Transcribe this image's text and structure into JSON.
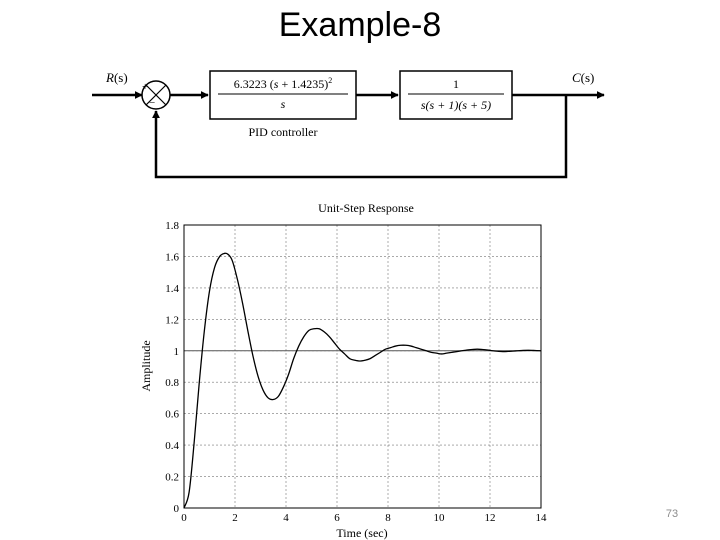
{
  "slide": {
    "title": "Example-8",
    "page_number": "73"
  },
  "block_diagram": {
    "input_label_var": "R",
    "input_label_arg": "(s)",
    "output_label_var": "C",
    "output_label_arg": "(s)",
    "sum_plus": "+",
    "sum_minus": "−",
    "pid_block": {
      "numerator_gain": "6.3223",
      "numerator_open": "(",
      "numerator_s": "s",
      "numerator_rest": "+ 1.4235)",
      "numerator_exp": "2",
      "denominator": "s",
      "caption": "PID controller"
    },
    "plant_block": {
      "numerator": "1",
      "denominator": "s(s + 1)(s + 5)"
    }
  },
  "chart_data": {
    "type": "line",
    "title": "Unit-Step Response",
    "xlabel": "Time (sec)",
    "ylabel": "Amplitude",
    "xlim": [
      0,
      14
    ],
    "ylim": [
      0,
      1.8
    ],
    "xticks": [
      "0",
      "2",
      "4",
      "6",
      "8",
      "10",
      "12",
      "14"
    ],
    "yticks": [
      "0",
      "0.2",
      "0.4",
      "0.6",
      "0.8",
      "1",
      "1.2",
      "1.4",
      "1.6",
      "1.8"
    ],
    "grid": true,
    "reference_line": 1,
    "series": [
      {
        "x": [
          0,
          0.2,
          0.4,
          0.6,
          0.8,
          1.0,
          1.2,
          1.4,
          1.6,
          1.75,
          1.9,
          2.1,
          2.3,
          2.5,
          2.7,
          2.9,
          3.1,
          3.3,
          3.5,
          3.7,
          3.9,
          4.1,
          4.3,
          4.5,
          4.7,
          4.9,
          5.1,
          5.3,
          5.5,
          5.7,
          5.9,
          6.1,
          6.3,
          6.5,
          6.7,
          6.9,
          7.1,
          7.3,
          7.5,
          7.7,
          7.9,
          8.1,
          8.3,
          8.5,
          8.7,
          8.9,
          9.1,
          9.3,
          9.5,
          9.7,
          9.9,
          10.1,
          10.3,
          10.5,
          10.7,
          10.9,
          11.1,
          11.3,
          11.5,
          11.7,
          11.9,
          12.1,
          12.3,
          12.5,
          12.7,
          12.9,
          13.1,
          13.3,
          13.5,
          13.7,
          14.0
        ],
        "y": [
          0,
          0.1,
          0.42,
          0.8,
          1.13,
          1.38,
          1.53,
          1.6,
          1.62,
          1.61,
          1.57,
          1.45,
          1.3,
          1.13,
          0.97,
          0.84,
          0.75,
          0.7,
          0.69,
          0.71,
          0.77,
          0.85,
          0.95,
          1.03,
          1.09,
          1.13,
          1.14,
          1.14,
          1.12,
          1.09,
          1.05,
          1.01,
          0.98,
          0.95,
          0.94,
          0.935,
          0.94,
          0.95,
          0.97,
          0.99,
          1.01,
          1.02,
          1.03,
          1.035,
          1.035,
          1.03,
          1.02,
          1.01,
          1.0,
          0.99,
          0.985,
          0.98,
          0.985,
          0.99,
          0.995,
          1.0,
          1.005,
          1.008,
          1.01,
          1.008,
          1.005,
          1.0,
          0.997,
          0.995,
          0.996,
          0.998,
          1.0,
          1.002,
          1.003,
          1.002,
          1.0
        ]
      }
    ]
  }
}
